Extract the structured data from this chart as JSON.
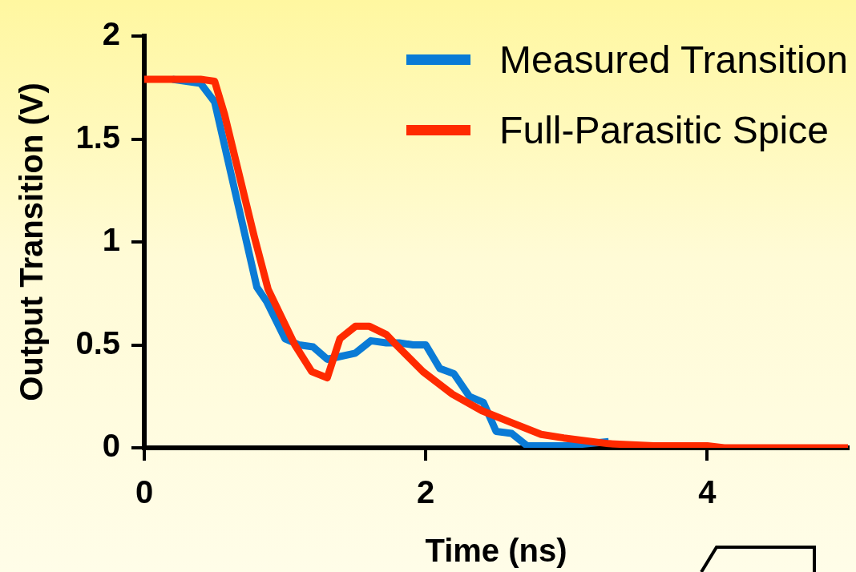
{
  "chart_data": {
    "type": "line",
    "xlabel": "Time (ns)",
    "ylabel": "Output Transition (V)",
    "xlim": [
      0,
      5
    ],
    "xticks": [
      0,
      2,
      4
    ],
    "ylim": [
      0,
      2
    ],
    "yticks": [
      0,
      0.5,
      1,
      1.5,
      2
    ],
    "grid": false,
    "legend": "top right",
    "marker": "none",
    "line_style": "solid",
    "series": [
      {
        "name": "Measured Transition",
        "color": "#0a7bd6",
        "x": [
          0.2,
          0.4,
          0.5,
          0.8,
          0.87,
          1.0,
          1.1,
          1.2,
          1.3,
          1.5,
          1.61,
          1.72,
          1.81,
          1.91,
          2.0,
          2.1,
          2.2,
          2.31,
          2.41,
          2.5,
          2.61,
          2.72,
          3.0,
          3.3
        ],
        "values": [
          1.79,
          1.77,
          1.68,
          0.78,
          0.71,
          0.53,
          0.5,
          0.49,
          0.43,
          0.46,
          0.52,
          0.51,
          0.51,
          0.5,
          0.5,
          0.385,
          0.36,
          0.25,
          0.22,
          0.08,
          0.07,
          0.01,
          0.01,
          0.03
        ]
      },
      {
        "name": "Full-Parasitic Spice",
        "color": "#ff2a00",
        "x": [
          0,
          0.4,
          0.5,
          0.57,
          0.78,
          0.88,
          1.07,
          1.19,
          1.3,
          1.39,
          1.5,
          1.6,
          1.72,
          1.79,
          1.98,
          2.19,
          2.4,
          2.6,
          2.82,
          2.98,
          3.3,
          3.62,
          4.0,
          4.12,
          5.0
        ],
        "values": [
          1.79,
          1.79,
          1.78,
          1.62,
          1.03,
          0.77,
          0.5,
          0.37,
          0.34,
          0.53,
          0.59,
          0.59,
          0.55,
          0.5,
          0.37,
          0.26,
          0.18,
          0.125,
          0.065,
          0.048,
          0.02,
          0.01,
          0.01,
          0,
          0
        ]
      }
    ]
  }
}
